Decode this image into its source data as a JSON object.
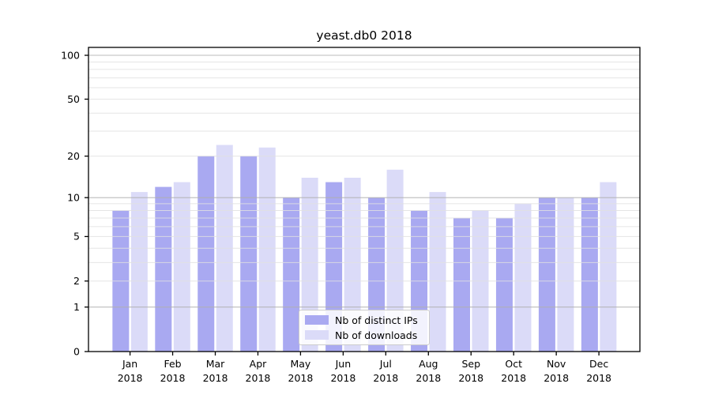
{
  "chart_data": {
    "type": "bar",
    "title": "yeast.db0 2018",
    "categories": [
      "Jan",
      "Feb",
      "Mar",
      "Apr",
      "May",
      "Jun",
      "Jul",
      "Aug",
      "Sep",
      "Oct",
      "Nov",
      "Dec"
    ],
    "year_label": "2018",
    "series": [
      {
        "name": "Nb of distinct IPs",
        "color": "#a9a9f1",
        "values": [
          8,
          12,
          20,
          20,
          10,
          13,
          10,
          8,
          7,
          7,
          10,
          10
        ]
      },
      {
        "name": "Nb of downloads",
        "color": "#dbdbf8",
        "values": [
          11,
          13,
          24,
          23,
          14,
          14,
          16,
          11,
          8,
          9,
          10,
          13
        ]
      }
    ],
    "yscale": "log1p",
    "ylim": [
      0,
      113
    ],
    "ytick_values": [
      0,
      1,
      2,
      5,
      10,
      20,
      50,
      100
    ],
    "ytick_labels": [
      "0",
      "1",
      "2",
      "5",
      "10",
      "20",
      "50",
      "100"
    ],
    "grid": {
      "on": true,
      "major_values": [
        1,
        10,
        100
      ],
      "minor_values": [
        2,
        3,
        4,
        5,
        6,
        7,
        8,
        9,
        20,
        30,
        40,
        50,
        60,
        70,
        80,
        90
      ]
    },
    "legend_position": "lower-center",
    "style": {
      "axis_color": "#000000",
      "major_grid_color": "rgba(175,175,175,0.85)",
      "minor_grid_color": "rgba(224,224,224,0.85)",
      "tick_label_color": "#000000",
      "tick_label_size": "12.5px",
      "background": "#ffffff"
    }
  }
}
